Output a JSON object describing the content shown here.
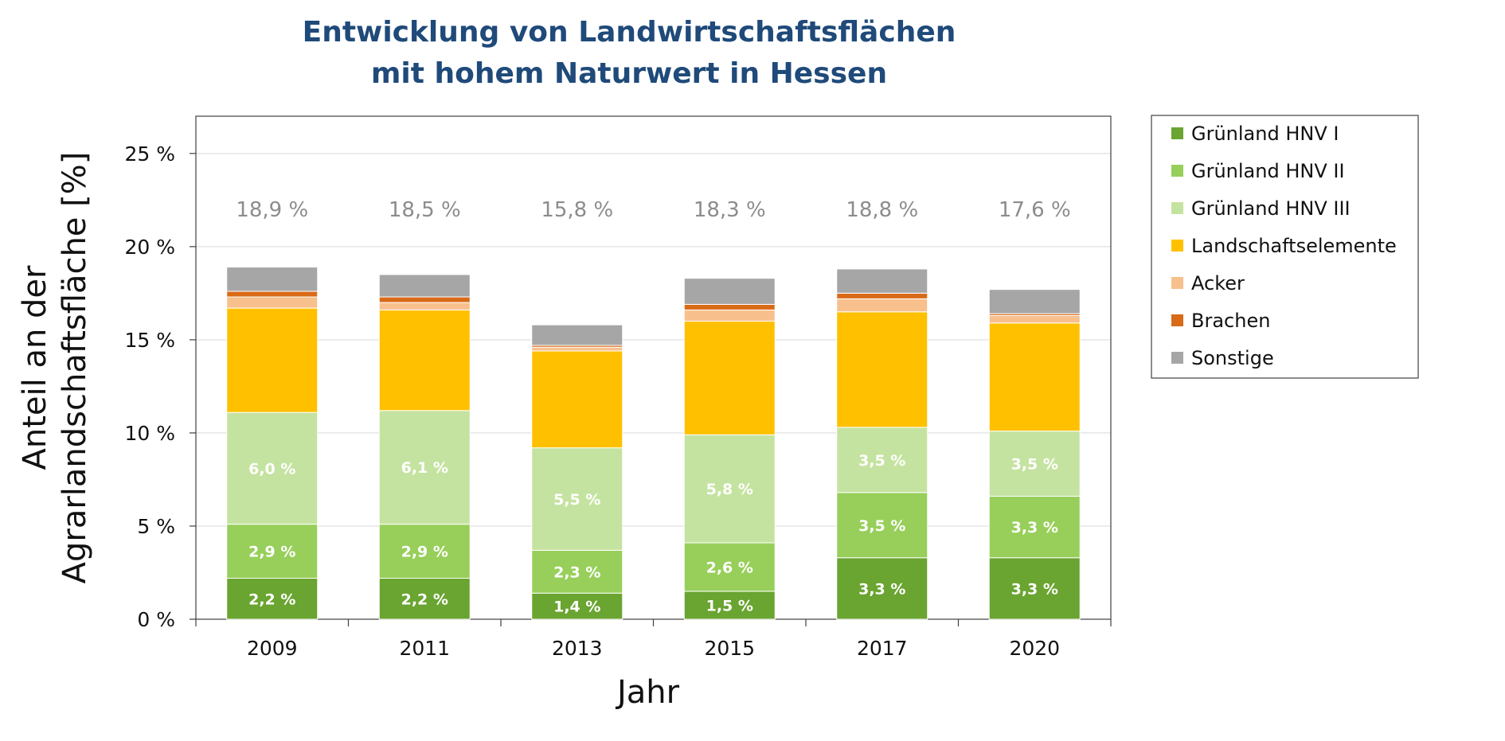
{
  "chart_data": {
    "type": "bar",
    "stacked": true,
    "title_lines": [
      "Entwicklung von Landwirtschaftsflächen",
      "mit hohem Naturwert  in Hessen"
    ],
    "xlabel": "Jahr",
    "ylabel_lines": [
      "Anteil an der",
      "Agrarlandschaftsfläche [%]"
    ],
    "categories": [
      "2009",
      "2011",
      "2013",
      "2015",
      "2017",
      "2020"
    ],
    "ylim": [
      0,
      27
    ],
    "yticks": [
      0,
      5,
      10,
      15,
      20,
      25
    ],
    "ytick_labels": [
      "0 %",
      "5 %",
      "10 %",
      "15 %",
      "20 %",
      "25 %"
    ],
    "grid": true,
    "legend_position": "right",
    "series": [
      {
        "name": "Grünland HNV I",
        "color": "#6aa431",
        "values": [
          2.2,
          2.2,
          1.4,
          1.5,
          3.3,
          3.3
        ],
        "labels": [
          "2,2 %",
          "2,2 %",
          "1,4 %",
          "1,5 %",
          "3,3 %",
          "3,3 %"
        ]
      },
      {
        "name": "Grünland HNV II",
        "color": "#97cf5a",
        "values": [
          2.9,
          2.9,
          2.3,
          2.6,
          3.5,
          3.3
        ],
        "labels": [
          "2,9 %",
          "2,9 %",
          "2,3 %",
          "2,6 %",
          "3,5 %",
          "3,3 %"
        ]
      },
      {
        "name": "Grünland HNV III",
        "color": "#c5e3a0",
        "values": [
          6.0,
          6.1,
          5.5,
          5.8,
          3.5,
          3.5
        ],
        "labels": [
          "6,0 %",
          "6,1 %",
          "5,5 %",
          "5,8 %",
          "3,5 %",
          "3,5 %"
        ]
      },
      {
        "name": "Landschaftselemente",
        "color": "#ffc000",
        "values": [
          5.6,
          5.4,
          5.2,
          6.1,
          6.2,
          5.8
        ]
      },
      {
        "name": "Acker",
        "color": "#f7c08d",
        "values": [
          0.6,
          0.4,
          0.2,
          0.6,
          0.7,
          0.4
        ]
      },
      {
        "name": "Brachen",
        "color": "#d96a17",
        "values": [
          0.3,
          0.3,
          0.1,
          0.3,
          0.3,
          0.1
        ]
      },
      {
        "name": "Sonstige",
        "color": "#a6a6a6",
        "values": [
          1.3,
          1.2,
          1.1,
          1.4,
          1.3,
          1.3
        ]
      }
    ],
    "totals": [
      "18,9 %",
      "18,5 %",
      "15,8 %",
      "18,3 %",
      "18,8 %",
      "17,6 %"
    ]
  }
}
